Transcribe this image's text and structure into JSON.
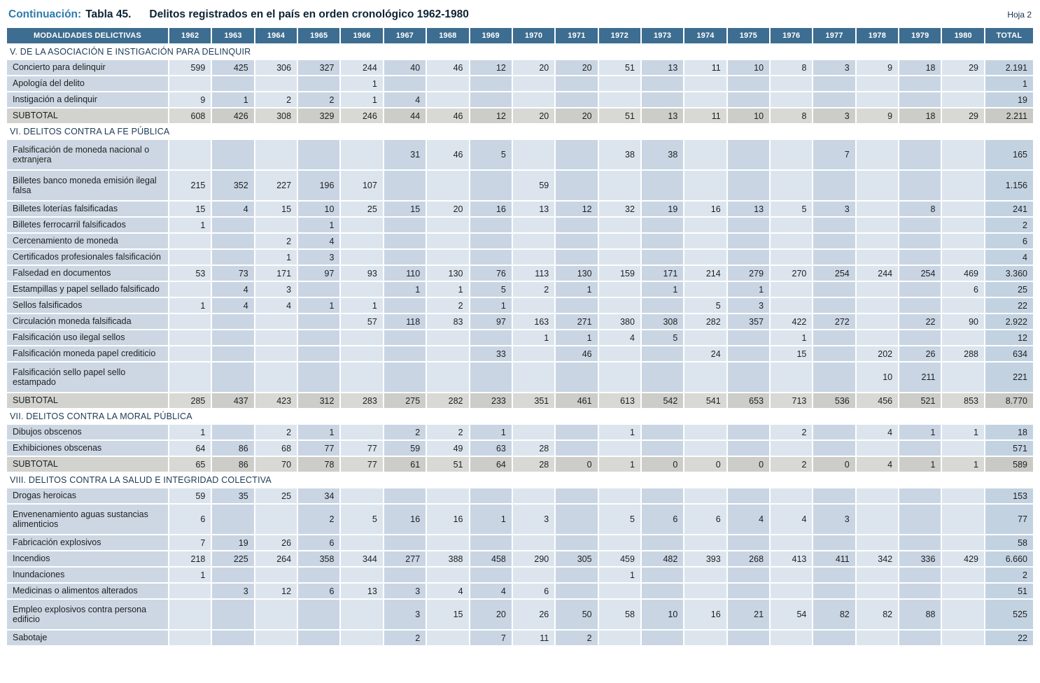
{
  "page": {
    "title_prefix": "Continuación:",
    "title_table": "Tabla 45.",
    "title_text": "Delitos registrados en el país en orden cronológico 1962-1980",
    "sheet_label": "Hoja 2"
  },
  "colors": {
    "header_bg": "#3d6d90",
    "header_text": "#ffffff",
    "label_column_bg": "#ccd7e3",
    "cell_light_bg": "#dce5ee",
    "cell_dark_bg": "#c9d5e3",
    "total_column_bg": "#c3d2e1",
    "subtotal_row_bg": "#d2d3cf",
    "section_text": "#1b3a55",
    "title_accent": "#2e7bab"
  },
  "table": {
    "header": {
      "label_col": "MODALIDADES DELICTIVAS",
      "years": [
        "1962",
        "1963",
        "1964",
        "1965",
        "1966",
        "1967",
        "1968",
        "1969",
        "1970",
        "1971",
        "1972",
        "1973",
        "1974",
        "1975",
        "1976",
        "1977",
        "1978",
        "1979",
        "1980"
      ],
      "total_col": "TOTAL"
    },
    "rows": [
      {
        "type": "section",
        "label": "V. DE LA ASOCIACIÓN E INSTIGACIÓN PARA DELINQUIR"
      },
      {
        "type": "data",
        "label": "Concierto para delinquir",
        "values": [
          "599",
          "425",
          "306",
          "327",
          "244",
          "40",
          "46",
          "12",
          "20",
          "20",
          "51",
          "13",
          "11",
          "10",
          "8",
          "3",
          "9",
          "18",
          "29"
        ],
        "total": "2.191"
      },
      {
        "type": "data",
        "label": "Apología del delito",
        "values": [
          "",
          "",
          "",
          "",
          "1",
          "",
          "",
          "",
          "",
          "",
          "",
          "",
          "",
          "",
          "",
          "",
          "",
          "",
          ""
        ],
        "total": "1"
      },
      {
        "type": "data",
        "label": "Instigación a delinquir",
        "values": [
          "9",
          "1",
          "2",
          "2",
          "1",
          "4",
          "",
          "",
          "",
          "",
          "",
          "",
          "",
          "",
          "",
          "",
          "",
          "",
          ""
        ],
        "total": "19"
      },
      {
        "type": "subtotal",
        "label": "SUBTOTAL",
        "values": [
          "608",
          "426",
          "308",
          "329",
          "246",
          "44",
          "46",
          "12",
          "20",
          "20",
          "51",
          "13",
          "11",
          "10",
          "8",
          "3",
          "9",
          "18",
          "29"
        ],
        "total": "2.211"
      },
      {
        "type": "section",
        "label": "VI. DELITOS CONTRA LA FE PÚBLICA"
      },
      {
        "type": "data",
        "twoline": true,
        "label": "Falsificación de moneda nacional o extranjera",
        "values": [
          "",
          "",
          "",
          "",
          "",
          "31",
          "46",
          "5",
          "",
          "",
          "38",
          "38",
          "",
          "",
          "",
          "7",
          "",
          "",
          ""
        ],
        "total": "165"
      },
      {
        "type": "data",
        "twoline": true,
        "label": "Billetes banco moneda emisión ilegal falsa",
        "values": [
          "215",
          "352",
          "227",
          "196",
          "107",
          "",
          "",
          "",
          "59",
          "",
          "",
          "",
          "",
          "",
          "",
          "",
          "",
          "",
          ""
        ],
        "total": "1.156"
      },
      {
        "type": "data",
        "label": "Billetes loterías falsificadas",
        "values": [
          "15",
          "4",
          "15",
          "10",
          "25",
          "15",
          "20",
          "16",
          "13",
          "12",
          "32",
          "19",
          "16",
          "13",
          "5",
          "3",
          "",
          "8",
          ""
        ],
        "total": "241"
      },
      {
        "type": "data",
        "label": "Billetes ferrocarril falsificados",
        "values": [
          "1",
          "",
          "",
          "1",
          "",
          "",
          "",
          "",
          "",
          "",
          "",
          "",
          "",
          "",
          "",
          "",
          "",
          "",
          ""
        ],
        "total": "2"
      },
      {
        "type": "data",
        "label": "Cercenamiento de moneda",
        "values": [
          "",
          "",
          "2",
          "4",
          "",
          "",
          "",
          "",
          "",
          "",
          "",
          "",
          "",
          "",
          "",
          "",
          "",
          "",
          ""
        ],
        "total": "6"
      },
      {
        "type": "data",
        "label": "Certificados profesionales falsificación",
        "values": [
          "",
          "",
          "1",
          "3",
          "",
          "",
          "",
          "",
          "",
          "",
          "",
          "",
          "",
          "",
          "",
          "",
          "",
          "",
          ""
        ],
        "total": "4"
      },
      {
        "type": "data",
        "label": "Falsedad en documentos",
        "values": [
          "53",
          "73",
          "171",
          "97",
          "93",
          "110",
          "130",
          "76",
          "113",
          "130",
          "159",
          "171",
          "214",
          "279",
          "270",
          "254",
          "244",
          "254",
          "469"
        ],
        "total": "3.360"
      },
      {
        "type": "data",
        "label": "Estampillas y papel sellado falsificado",
        "values": [
          "",
          "4",
          "3",
          "",
          "",
          "1",
          "1",
          "5",
          "2",
          "1",
          "",
          "1",
          "",
          "1",
          "",
          "",
          "",
          "",
          "6"
        ],
        "total": "25"
      },
      {
        "type": "data",
        "label": "Sellos falsificados",
        "values": [
          "1",
          "4",
          "4",
          "1",
          "1",
          "",
          "2",
          "1",
          "",
          "",
          "",
          "",
          "5",
          "3",
          "",
          "",
          "",
          "",
          ""
        ],
        "total": "22"
      },
      {
        "type": "data",
        "label": "Circulación moneda falsificada",
        "values": [
          "",
          "",
          "",
          "",
          "57",
          "118",
          "83",
          "97",
          "163",
          "271",
          "380",
          "308",
          "282",
          "357",
          "422",
          "272",
          "",
          "22",
          "90"
        ],
        "total": "2.922"
      },
      {
        "type": "data",
        "label": "Falsificación uso ilegal sellos",
        "values": [
          "",
          "",
          "",
          "",
          "",
          "",
          "",
          "",
          "1",
          "1",
          "4",
          "5",
          "",
          "",
          "1",
          "",
          "",
          "",
          ""
        ],
        "total": "12"
      },
      {
        "type": "data",
        "label": "Falsificación moneda papel crediticio",
        "values": [
          "",
          "",
          "",
          "",
          "",
          "",
          "",
          "33",
          "",
          "46",
          "",
          "",
          "24",
          "",
          "15",
          "",
          "202",
          "26",
          "288"
        ],
        "total": "634"
      },
      {
        "type": "data",
        "twoline": true,
        "label": "Falsificación sello papel sello estampado",
        "values": [
          "",
          "",
          "",
          "",
          "",
          "",
          "",
          "",
          "",
          "",
          "",
          "",
          "",
          "",
          "",
          "",
          "10",
          "211",
          ""
        ],
        "total": "221"
      },
      {
        "type": "subtotal",
        "label": "SUBTOTAL",
        "values": [
          "285",
          "437",
          "423",
          "312",
          "283",
          "275",
          "282",
          "233",
          "351",
          "461",
          "613",
          "542",
          "541",
          "653",
          "713",
          "536",
          "456",
          "521",
          "853"
        ],
        "total": "8.770"
      },
      {
        "type": "section",
        "label": "VII. DELITOS CONTRA LA MORAL PÚBLICA"
      },
      {
        "type": "data",
        "label": "Dibujos obscenos",
        "values": [
          "1",
          "",
          "2",
          "1",
          "",
          "2",
          "2",
          "1",
          "",
          "",
          "1",
          "",
          "",
          "",
          "2",
          "",
          "4",
          "1",
          "1"
        ],
        "total": "18"
      },
      {
        "type": "data",
        "label": "Exhibiciones obscenas",
        "values": [
          "64",
          "86",
          "68",
          "77",
          "77",
          "59",
          "49",
          "63",
          "28",
          "",
          "",
          "",
          "",
          "",
          "",
          "",
          "",
          "",
          ""
        ],
        "total": "571"
      },
      {
        "type": "subtotal",
        "label": "SUBTOTAL",
        "values": [
          "65",
          "86",
          "70",
          "78",
          "77",
          "61",
          "51",
          "64",
          "28",
          "0",
          "1",
          "0",
          "0",
          "0",
          "2",
          "0",
          "4",
          "1",
          "1"
        ],
        "total": "589"
      },
      {
        "type": "section",
        "label": "VIII. DELITOS CONTRA LA SALUD E INTEGRIDAD COLECTIVA"
      },
      {
        "type": "data",
        "label": "Drogas heroicas",
        "values": [
          "59",
          "35",
          "25",
          "34",
          "",
          "",
          "",
          "",
          "",
          "",
          "",
          "",
          "",
          "",
          "",
          "",
          "",
          "",
          ""
        ],
        "total": "153"
      },
      {
        "type": "data",
        "twoline": true,
        "label": "Envenenamiento aguas sustancias alimenticios",
        "values": [
          "6",
          "",
          "",
          "2",
          "5",
          "16",
          "16",
          "1",
          "3",
          "",
          "5",
          "6",
          "6",
          "4",
          "4",
          "3",
          "",
          "",
          ""
        ],
        "total": "77"
      },
      {
        "type": "data",
        "label": "Fabricación explosivos",
        "values": [
          "7",
          "19",
          "26",
          "6",
          "",
          "",
          "",
          "",
          "",
          "",
          "",
          "",
          "",
          "",
          "",
          "",
          "",
          "",
          ""
        ],
        "total": "58"
      },
      {
        "type": "data",
        "label": "Incendios",
        "values": [
          "218",
          "225",
          "264",
          "358",
          "344",
          "277",
          "388",
          "458",
          "290",
          "305",
          "459",
          "482",
          "393",
          "268",
          "413",
          "411",
          "342",
          "336",
          "429"
        ],
        "total": "6.660"
      },
      {
        "type": "data",
        "label": "Inundaciones",
        "values": [
          "1",
          "",
          "",
          "",
          "",
          "",
          "",
          "",
          "",
          "",
          "1",
          "",
          "",
          "",
          "",
          "",
          "",
          "",
          ""
        ],
        "total": "2"
      },
      {
        "type": "data",
        "label": "Medicinas o alimentos alterados",
        "values": [
          "",
          "3",
          "12",
          "6",
          "13",
          "3",
          "4",
          "4",
          "6",
          "",
          "",
          "",
          "",
          "",
          "",
          "",
          "",
          "",
          ""
        ],
        "total": "51"
      },
      {
        "type": "data",
        "twoline": true,
        "label": "Empleo explosivos contra persona edificio",
        "values": [
          "",
          "",
          "",
          "",
          "",
          "3",
          "15",
          "20",
          "26",
          "50",
          "58",
          "10",
          "16",
          "21",
          "54",
          "82",
          "82",
          "88",
          ""
        ],
        "total": "525"
      },
      {
        "type": "data",
        "label": "Sabotaje",
        "values": [
          "",
          "",
          "",
          "",
          "",
          "2",
          "",
          "7",
          "11",
          "2",
          "",
          "",
          "",
          "",
          "",
          "",
          "",
          "",
          ""
        ],
        "total": "22"
      }
    ]
  }
}
